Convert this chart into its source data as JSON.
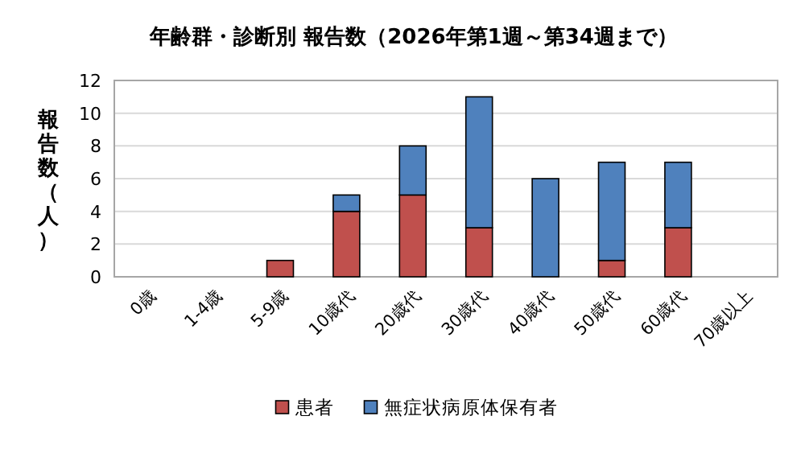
{
  "chart_data": {
    "type": "bar",
    "title": "年齢群・診断別  報告数（2026年第1週～第34週まで）",
    "ylabel": "報告数（人）",
    "categories": [
      "0歳",
      "1-4歳",
      "5-9歳",
      "10歳代",
      "20歳代",
      "30歳代",
      "40歳代",
      "50歳代",
      "60歳代",
      "70歳以上"
    ],
    "series": [
      {
        "name": "患者",
        "color": "#c0504d",
        "values": [
          0,
          0,
          1,
          4,
          5,
          3,
          0,
          1,
          3,
          0
        ]
      },
      {
        "name": "無症状病原体保有者",
        "color": "#4f81bd",
        "values": [
          0,
          0,
          0,
          1,
          3,
          8,
          6,
          6,
          4,
          0
        ]
      }
    ],
    "stacked": true,
    "ylim": [
      0,
      12
    ],
    "yticks": [
      0,
      2,
      4,
      6,
      8,
      10,
      12
    ],
    "grid": "y",
    "legend": "bottom"
  }
}
